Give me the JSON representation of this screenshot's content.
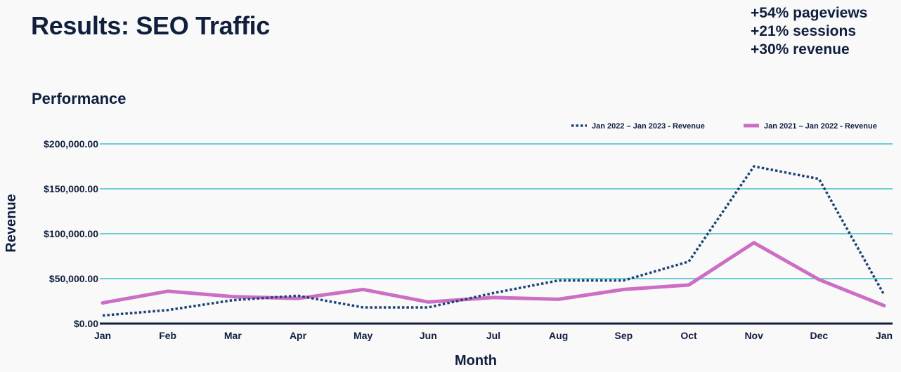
{
  "slide": {
    "title": "Results: SEO Traffic",
    "stats": [
      "+54% pageviews",
      "+21% sessions",
      "+30% revenue"
    ]
  },
  "colors": {
    "text": "#0f1f3d",
    "gridline": "#3fbfc7",
    "series_2022": "#1e4475",
    "series_2021": "#cc6ec4",
    "baseline": "#0f1f3d"
  },
  "chart_data": {
    "type": "line",
    "title": "Performance",
    "xlabel": "Month",
    "ylabel": "Revenue",
    "categories": [
      "Jan",
      "Feb",
      "Mar",
      "Apr",
      "May",
      "Jun",
      "Jul",
      "Aug",
      "Sep",
      "Oct",
      "Nov",
      "Dec",
      "Jan"
    ],
    "ylim": [
      0,
      200000
    ],
    "yticks": [
      0,
      50000,
      100000,
      150000,
      200000
    ],
    "ytick_labels": [
      "$0.00",
      "$50,000.00",
      "$100,000.00",
      "$150,000.00",
      "$200,000.00"
    ],
    "grid": true,
    "legend_position": "top-right",
    "series": [
      {
        "name": "Jan 2022 – Jan 2023 - Revenue",
        "style": "dotted",
        "values": [
          9000,
          15000,
          26000,
          31000,
          18000,
          18000,
          34000,
          48000,
          48000,
          69000,
          175000,
          161000,
          32000
        ]
      },
      {
        "name": "Jan 2021 – Jan 2022 - Revenue",
        "style": "solid",
        "values": [
          23000,
          36000,
          30000,
          28000,
          38000,
          24000,
          29000,
          27000,
          38000,
          43000,
          90000,
          49000,
          20000
        ]
      }
    ]
  }
}
